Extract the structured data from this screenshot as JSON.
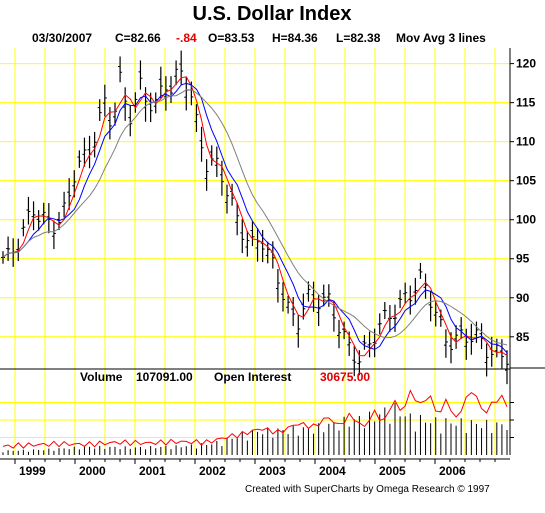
{
  "chart_data": {
    "type": "line",
    "title": "U.S. Dollar Index",
    "header": {
      "date": "03/30/2007",
      "close": "C=82.66",
      "change": "-.84",
      "open": "O=83.53",
      "high": "H=84.36",
      "low": "L=82.38",
      "indicator": "Mov Avg 3 lines"
    },
    "volume_header": {
      "volume_label": "Volume",
      "volume_value": "107091.00",
      "oi_label": "Open Interest",
      "oi_value": "30675.00"
    },
    "x_tick_labels": [
      "1999",
      "2000",
      "2001",
      "2002",
      "2003",
      "2004",
      "2005",
      "2006"
    ],
    "x_tick_years": [
      1999,
      2000,
      2001,
      2002,
      2003,
      2004,
      2005,
      2006
    ],
    "xlim": [
      1998.75,
      2007.25
    ],
    "ylim": [
      81,
      122
    ],
    "y_ticks": [
      85,
      90,
      95,
      100,
      105,
      110,
      115,
      120
    ],
    "grid": true,
    "colors": {
      "grid": "#ffff00",
      "price_bars": "#000000",
      "ma_short": "#ff0000",
      "ma_mid": "#0000ff",
      "ma_long": "#808080",
      "open_interest_line": "#ff0000",
      "volume_bars": "#000000",
      "header_change": "#e00000",
      "header_oi_value": "#e00000"
    },
    "price_anchors": [
      [
        1998.75,
        95.5
      ],
      [
        1998.9,
        94.5
      ],
      [
        1999.1,
        97.0
      ],
      [
        1999.3,
        102.0
      ],
      [
        1999.5,
        100.5
      ],
      [
        1999.7,
        99.0
      ],
      [
        1999.85,
        100.5
      ],
      [
        2000.0,
        106.0
      ],
      [
        2000.2,
        109.0
      ],
      [
        2000.35,
        112.0
      ],
      [
        2000.5,
        115.0
      ],
      [
        2000.62,
        111.5
      ],
      [
        2000.75,
        117.0
      ],
      [
        2000.9,
        113.0
      ],
      [
        2001.1,
        118.0
      ],
      [
        2001.2,
        116.0
      ],
      [
        2001.35,
        114.5
      ],
      [
        2001.5,
        117.0
      ],
      [
        2001.6,
        116.0
      ],
      [
        2001.75,
        119.0
      ],
      [
        2001.9,
        118.0
      ],
      [
        2002.05,
        112.0
      ],
      [
        2002.2,
        107.0
      ],
      [
        2002.4,
        106.0
      ],
      [
        2002.6,
        102.0
      ],
      [
        2002.75,
        100.0
      ],
      [
        2002.95,
        97.0
      ],
      [
        2003.1,
        97.5
      ],
      [
        2003.25,
        94.0
      ],
      [
        2003.4,
        92.0
      ],
      [
        2003.55,
        89.0
      ],
      [
        2003.7,
        87.5
      ],
      [
        2003.85,
        90.0
      ],
      [
        2004.05,
        89.0
      ],
      [
        2004.25,
        89.0
      ],
      [
        2004.4,
        87.0
      ],
      [
        2004.55,
        84.5
      ],
      [
        2004.75,
        82.0
      ],
      [
        2004.9,
        83.0
      ],
      [
        2005.1,
        86.5
      ],
      [
        2005.3,
        89.0
      ],
      [
        2005.45,
        90.0
      ],
      [
        2005.6,
        90.5
      ],
      [
        2005.75,
        91.5
      ],
      [
        2005.9,
        90.0
      ],
      [
        2006.0,
        88.5
      ],
      [
        2006.15,
        85.5
      ],
      [
        2006.35,
        85.0
      ],
      [
        2006.55,
        84.5
      ],
      [
        2006.75,
        84.0
      ],
      [
        2006.9,
        83.5
      ],
      [
        2007.05,
        83.5
      ],
      [
        2007.2,
        83.0
      ]
    ],
    "volume_anchors": [
      [
        1998.75,
        6
      ],
      [
        1999.5,
        8
      ],
      [
        2000.2,
        12
      ],
      [
        2001.0,
        11
      ],
      [
        2001.8,
        13
      ],
      [
        2002.3,
        17
      ],
      [
        2002.6,
        25
      ],
      [
        2003.0,
        35
      ],
      [
        2003.5,
        37
      ],
      [
        2004.0,
        40
      ],
      [
        2004.5,
        50
      ],
      [
        2005.0,
        58
      ],
      [
        2005.3,
        70
      ],
      [
        2005.6,
        55
      ],
      [
        2006.0,
        50
      ],
      [
        2006.5,
        48
      ],
      [
        2007.0,
        45
      ]
    ],
    "open_interest_anchors": [
      [
        1998.75,
        12
      ],
      [
        1999.2,
        14
      ],
      [
        1999.7,
        16
      ],
      [
        2000.2,
        15
      ],
      [
        2000.7,
        18
      ],
      [
        2001.2,
        17
      ],
      [
        2001.7,
        19
      ],
      [
        2002.2,
        18
      ],
      [
        2002.5,
        25
      ],
      [
        2002.8,
        30
      ],
      [
        2003.1,
        38
      ],
      [
        2003.4,
        32
      ],
      [
        2003.7,
        45
      ],
      [
        2004.0,
        40
      ],
      [
        2004.2,
        55
      ],
      [
        2004.4,
        42
      ],
      [
        2004.6,
        58
      ],
      [
        2004.8,
        38
      ],
      [
        2005.0,
        62
      ],
      [
        2005.15,
        45
      ],
      [
        2005.3,
        80
      ],
      [
        2005.45,
        60
      ],
      [
        2005.6,
        92
      ],
      [
        2005.75,
        70
      ],
      [
        2005.9,
        88
      ],
      [
        2006.05,
        55
      ],
      [
        2006.2,
        80
      ],
      [
        2006.35,
        50
      ],
      [
        2006.5,
        78
      ],
      [
        2006.65,
        95
      ],
      [
        2006.8,
        58
      ],
      [
        2006.95,
        72
      ],
      [
        2007.1,
        85
      ],
      [
        2007.2,
        70
      ]
    ],
    "bars_count": 100
  },
  "credit": "Created with SuperCharts by Omega Research © 1997"
}
